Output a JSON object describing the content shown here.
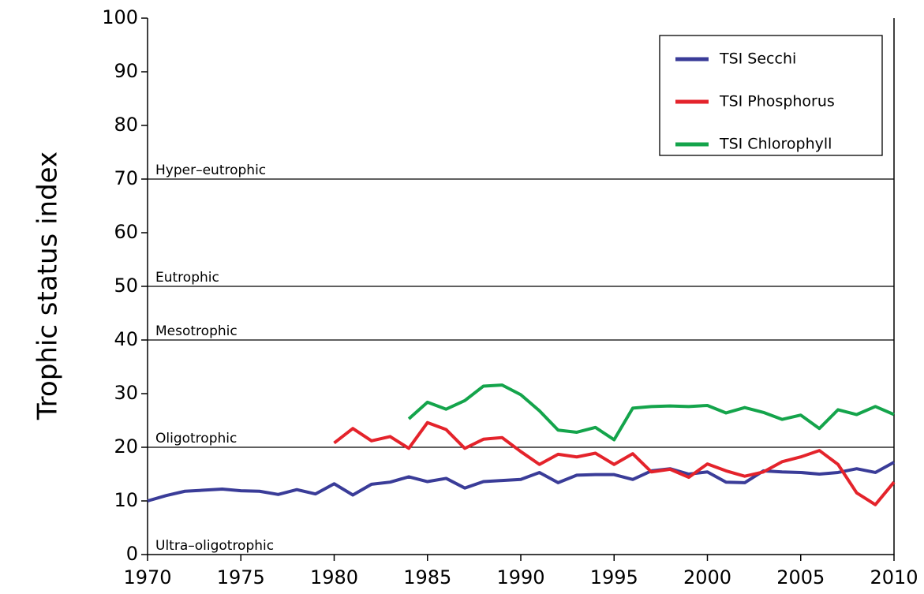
{
  "chart_data": {
    "type": "line",
    "y_label": "Trophic status index",
    "x": [
      1970,
      1971,
      1972,
      1973,
      1974,
      1975,
      1976,
      1977,
      1978,
      1979,
      1980,
      1981,
      1982,
      1983,
      1984,
      1985,
      1986,
      1987,
      1988,
      1989,
      1990,
      1991,
      1992,
      1993,
      1994,
      1995,
      1996,
      1997,
      1998,
      1999,
      2000,
      2001,
      2002,
      2003,
      2004,
      2005,
      2006,
      2007,
      2008,
      2009,
      2010
    ],
    "series": [
      {
        "name": "TSI Secchi",
        "color": "#3a3c98",
        "values": [
          10.0,
          11.0,
          11.8,
          12.0,
          12.2,
          11.9,
          11.8,
          11.2,
          12.1,
          11.3,
          13.2,
          11.1,
          13.1,
          13.5,
          14.5,
          13.6,
          14.2,
          12.4,
          13.6,
          13.8,
          14.0,
          15.3,
          13.4,
          14.8,
          14.9,
          14.9,
          14.0,
          15.6,
          16.0,
          15.0,
          15.4,
          13.5,
          13.4,
          15.6,
          15.4,
          15.3,
          15.0,
          15.3,
          16.0,
          15.3,
          17.2
        ]
      },
      {
        "name": "TSI Phosphorus",
        "color": "#e4232b",
        "values": [
          null,
          null,
          null,
          null,
          null,
          null,
          null,
          null,
          null,
          null,
          20.8,
          23.5,
          21.2,
          22.0,
          19.8,
          24.6,
          23.3,
          19.8,
          21.5,
          21.8,
          19.2,
          16.8,
          18.7,
          18.2,
          18.9,
          16.8,
          18.8,
          15.4,
          15.9,
          14.4,
          16.9,
          15.6,
          14.6,
          15.4,
          17.3,
          18.2,
          19.4,
          16.8,
          11.5,
          9.3,
          13.5
        ]
      },
      {
        "name": "TSI Chlorophyll",
        "color": "#14a44b",
        "values": [
          null,
          null,
          null,
          null,
          null,
          null,
          null,
          null,
          null,
          null,
          null,
          null,
          null,
          null,
          25.3,
          28.4,
          27.1,
          28.7,
          31.4,
          31.6,
          29.8,
          26.8,
          23.2,
          22.8,
          23.7,
          21.4,
          27.3,
          27.6,
          27.7,
          27.6,
          27.8,
          26.4,
          27.4,
          26.5,
          25.2,
          26.0,
          23.5,
          27.0,
          26.1,
          27.6,
          26.1
        ]
      }
    ],
    "zones": [
      {
        "label": "Ultra–oligotrophic",
        "lower": 0
      },
      {
        "label": "Oligotrophic",
        "lower": 20
      },
      {
        "label": "Mesotrophic",
        "lower": 40
      },
      {
        "label": "Eutrophic",
        "lower": 50
      },
      {
        "label": "Hyper–eutrophic",
        "lower": 70
      }
    ],
    "xlim": [
      1970,
      2010
    ],
    "xticks": [
      1970,
      1975,
      1980,
      1985,
      1990,
      1995,
      2000,
      2005,
      2010
    ],
    "ylim": [
      0,
      100
    ],
    "yticks": [
      0,
      10,
      20,
      30,
      40,
      50,
      60,
      70,
      80,
      90,
      100
    ],
    "legend": "upper-right"
  }
}
